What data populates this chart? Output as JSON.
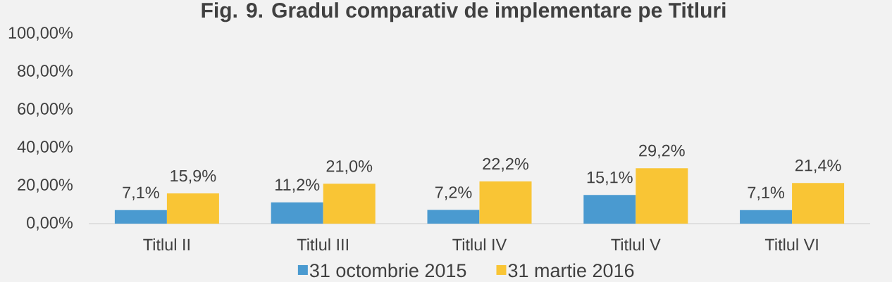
{
  "chart_data": {
    "type": "bar",
    "title": "Fig. 9. Gradul comparativ de implementare pe Titluri",
    "categories": [
      "Titlul II",
      "Titlul III",
      "Titlul IV",
      "Titlul V",
      "Titlul VI"
    ],
    "series": [
      {
        "name": "31 octombrie 2015",
        "color": "#4a9ad0",
        "values": [
          7.1,
          11.2,
          7.2,
          15.1,
          7.1
        ],
        "value_labels": [
          "7,1%",
          "11,2%",
          "7,2%",
          "15,1%",
          "7,1%"
        ]
      },
      {
        "name": "31 martie 2016",
        "color": "#f9c535",
        "values": [
          15.9,
          21.0,
          22.2,
          29.2,
          21.4
        ],
        "value_labels": [
          "15,9%",
          "21,0%",
          "22,2%",
          "29,2%",
          "21,4%"
        ]
      }
    ],
    "ylim": [
      0,
      100
    ],
    "yticks": [
      {
        "value": 0,
        "label": "0,00%"
      },
      {
        "value": 20,
        "label": "20,00%"
      },
      {
        "value": 40,
        "label": "40,00%"
      },
      {
        "value": 60,
        "label": "60,00%"
      },
      {
        "value": 80,
        "label": "80,00%"
      },
      {
        "value": 100,
        "label": "100,00%"
      }
    ],
    "legend": "bottom"
  }
}
